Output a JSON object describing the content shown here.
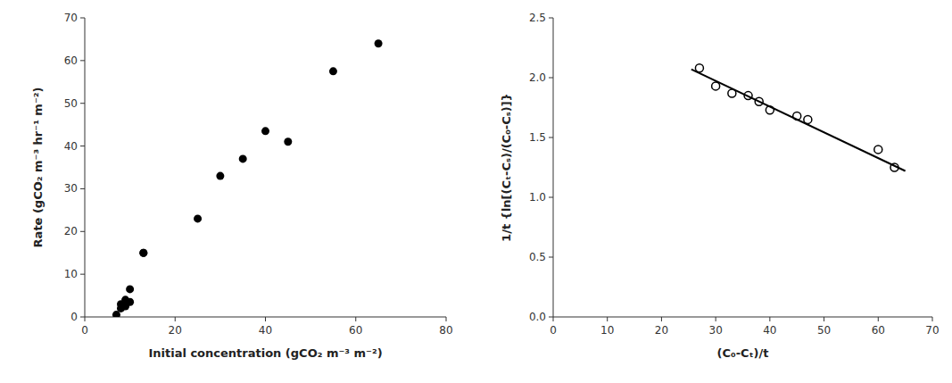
{
  "chart_data": [
    {
      "type": "scatter",
      "xlabel": "Initial concentration (gCO₂ m⁻³ m⁻²)",
      "ylabel": "Rate (gCO₂ m⁻³ hr⁻¹ m⁻²)",
      "series": [
        {
          "type": "scatter",
          "marker": "circle",
          "color": "#000000",
          "x": [
            7,
            8,
            8,
            9,
            9,
            10,
            10,
            13,
            13,
            25,
            30,
            35,
            40,
            45,
            55,
            65
          ],
          "values": [
            0.5,
            2.0,
            3.0,
            4.0,
            2.5,
            6.5,
            3.5,
            15.0,
            15.0,
            23.0,
            33.0,
            37.0,
            43.5,
            41.0,
            57.5,
            64.0
          ]
        }
      ],
      "xlim": [
        0,
        80
      ],
      "ylim": [
        0,
        70
      ],
      "xticks": [
        0,
        20,
        40,
        60,
        80
      ],
      "yticks": [
        0,
        10,
        20,
        30,
        40,
        50,
        60,
        70
      ],
      "grid": false
    },
    {
      "type": "scatter",
      "xlabel": "(C₀-Cₜ)/t",
      "ylabel": "1/t {ln[(Cₜ-Cₛ)/(C₀-Cₛ)]}",
      "series": [
        {
          "type": "scatter",
          "marker": "circle-open",
          "color": "#000000",
          "x": [
            27,
            30,
            33,
            36,
            38,
            40,
            45,
            47,
            60,
            63
          ],
          "values": [
            2.08,
            1.93,
            1.87,
            1.85,
            1.8,
            1.73,
            1.68,
            1.65,
            1.4,
            1.25
          ]
        },
        {
          "type": "line",
          "line_style": "solid",
          "color": "#000000",
          "x": [
            25.5,
            65.0
          ],
          "values": [
            2.07,
            1.22
          ]
        }
      ],
      "xlim": [
        0,
        70
      ],
      "ylim": [
        0.0,
        2.5
      ],
      "xticks": [
        0,
        10,
        20,
        30,
        40,
        50,
        60,
        70
      ],
      "yticks": [
        {
          "value": 0.0,
          "label": "0.0"
        },
        0.5,
        {
          "value": 1.0,
          "label": "1.0"
        },
        1.5,
        {
          "value": 2.0,
          "label": "2.0"
        },
        2.5
      ],
      "grid": false
    }
  ]
}
